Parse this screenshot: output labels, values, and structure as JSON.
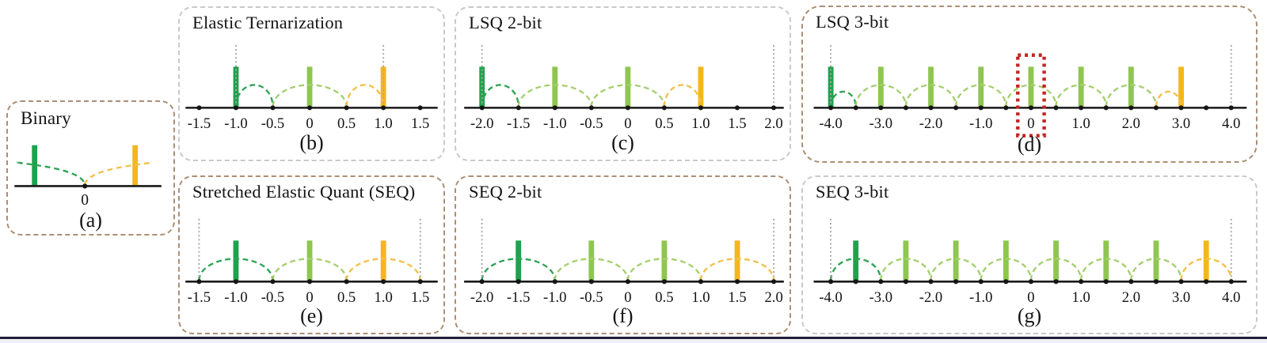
{
  "figure": {
    "colors": {
      "bar_dark_green": "#1fa24d",
      "bar_light_green": "#8ec64f",
      "bar_yellow": "#f3b71c",
      "arc_dark_green": "#2ea355",
      "arc_light_green": "#a5cf6e",
      "arc_yellow": "#f2c04a",
      "axis": "#1a1a1a",
      "tick_dot": "#161616",
      "label_text": "#121212",
      "dotted_line": "#a9a9a9",
      "border_gray": "#c9c9c9",
      "border_tan": "#ab8f73",
      "highlight_red": "#c42420",
      "bottom_rule": "#20203a"
    },
    "panels": [
      {
        "id": "a",
        "title": "Binary",
        "caption": "(a)",
        "border": "tan",
        "type": "binary",
        "zero_label": "0",
        "bars": [
          {
            "pos": -1,
            "color": "darkGreen"
          },
          {
            "pos": 1,
            "color": "yellow"
          }
        ],
        "curves": [
          {
            "side": "left",
            "color": "darkGreen"
          },
          {
            "side": "right",
            "color": "yellow"
          }
        ]
      },
      {
        "id": "b",
        "title": "Elastic Ternarization",
        "caption": "(b)",
        "border": "gray",
        "range": [
          -1.5,
          1.5
        ],
        "tick_labels": [
          {
            "v": -1.5,
            "t": "-1.5"
          },
          {
            "v": -1,
            "t": "-1.0"
          },
          {
            "v": -0.5,
            "t": "-0.5"
          },
          {
            "v": 0,
            "t": "0"
          },
          {
            "v": 0.5,
            "t": "0.5"
          },
          {
            "v": 1,
            "t": "1.0"
          },
          {
            "v": 1.5,
            "t": "1.5"
          }
        ],
        "bars": [
          {
            "pos": -1,
            "color": "darkGreen"
          },
          {
            "pos": 0,
            "color": "lightGreen"
          },
          {
            "pos": 1,
            "color": "yellow"
          }
        ],
        "dotted_lines": [
          -1,
          1
        ],
        "arcs": [
          {
            "from": -1,
            "to": -0.5,
            "color": "darkGreen"
          },
          {
            "from": -0.5,
            "to": 0.5,
            "color": "lightGreen"
          },
          {
            "from": 0.5,
            "to": 1,
            "color": "yellow"
          }
        ]
      },
      {
        "id": "c",
        "title": "LSQ 2-bit",
        "caption": "(c)",
        "border": "gray",
        "range": [
          -2,
          2
        ],
        "tick_labels": [
          {
            "v": -2,
            "t": "-2.0"
          },
          {
            "v": -1.5,
            "t": "-1.5"
          },
          {
            "v": -1,
            "t": "-1.0"
          },
          {
            "v": -0.5,
            "t": "-0.5"
          },
          {
            "v": 0,
            "t": "0"
          },
          {
            "v": 0.5,
            "t": "0.5"
          },
          {
            "v": 1,
            "t": "1.0"
          },
          {
            "v": 1.5,
            "t": "1.5"
          },
          {
            "v": 2,
            "t": "2.0"
          }
        ],
        "bars": [
          {
            "pos": -2,
            "color": "darkGreen"
          },
          {
            "pos": -1,
            "color": "lightGreen"
          },
          {
            "pos": 0,
            "color": "lightGreen"
          },
          {
            "pos": 1,
            "color": "yellow"
          }
        ],
        "dotted_lines": [
          -2,
          2
        ],
        "arcs": [
          {
            "from": -2,
            "to": -1.5,
            "color": "darkGreen"
          },
          {
            "from": -1.5,
            "to": -0.5,
            "color": "lightGreen"
          },
          {
            "from": -0.5,
            "to": 0.5,
            "color": "lightGreen"
          },
          {
            "from": 0.5,
            "to": 1,
            "color": "yellow"
          }
        ]
      },
      {
        "id": "d",
        "title": "LSQ 3-bit",
        "caption": "(d)",
        "border": "tan",
        "range": [
          -4,
          4
        ],
        "highlight_value": 0,
        "tick_labels": [
          {
            "v": -4,
            "t": "-4.0"
          },
          {
            "v": -3,
            "t": "-3.0"
          },
          {
            "v": -2,
            "t": "-2.0"
          },
          {
            "v": -1,
            "t": "-1.0"
          },
          {
            "v": 0,
            "t": "0"
          },
          {
            "v": 1,
            "t": "1.0"
          },
          {
            "v": 2,
            "t": "2.0"
          },
          {
            "v": 3,
            "t": "3.0"
          },
          {
            "v": 4,
            "t": "4.0"
          }
        ],
        "bars": [
          {
            "pos": -4,
            "color": "darkGreen"
          },
          {
            "pos": -3,
            "color": "lightGreen"
          },
          {
            "pos": -2,
            "color": "lightGreen"
          },
          {
            "pos": -1,
            "color": "lightGreen"
          },
          {
            "pos": 0,
            "color": "lightGreen"
          },
          {
            "pos": 1,
            "color": "lightGreen"
          },
          {
            "pos": 2,
            "color": "lightGreen"
          },
          {
            "pos": 3,
            "color": "yellow"
          }
        ],
        "dotted_lines": [
          -4,
          4
        ],
        "arcs": [
          {
            "from": -4,
            "to": -3.5,
            "color": "darkGreen"
          },
          {
            "from": -3.5,
            "to": -2.5,
            "color": "lightGreen"
          },
          {
            "from": -2.5,
            "to": -1.5,
            "color": "lightGreen"
          },
          {
            "from": -1.5,
            "to": -0.5,
            "color": "lightGreen"
          },
          {
            "from": -0.5,
            "to": 0.5,
            "color": "lightGreen"
          },
          {
            "from": 0.5,
            "to": 1.5,
            "color": "lightGreen"
          },
          {
            "from": 1.5,
            "to": 2.5,
            "color": "lightGreen"
          },
          {
            "from": 2.5,
            "to": 3,
            "color": "yellow"
          }
        ]
      },
      {
        "id": "e",
        "title": "Stretched Elastic Quant (SEQ)",
        "caption": "(e)",
        "border": "tan",
        "range": [
          -1.5,
          1.5
        ],
        "tick_labels": [
          {
            "v": -1.5,
            "t": "-1.5"
          },
          {
            "v": -1,
            "t": "-1.0"
          },
          {
            "v": -0.5,
            "t": "-0.5"
          },
          {
            "v": 0,
            "t": "0"
          },
          {
            "v": 0.5,
            "t": "0.5"
          },
          {
            "v": 1,
            "t": "1.0"
          },
          {
            "v": 1.5,
            "t": "1.5"
          }
        ],
        "bars": [
          {
            "pos": -1,
            "color": "darkGreen"
          },
          {
            "pos": 0,
            "color": "lightGreen"
          },
          {
            "pos": 1,
            "color": "yellow"
          }
        ],
        "dotted_lines": [
          -1.5,
          1.5
        ],
        "arcs": [
          {
            "from": -1.5,
            "to": -0.5,
            "color": "darkGreen"
          },
          {
            "from": -0.5,
            "to": 0.5,
            "color": "lightGreen"
          },
          {
            "from": 0.5,
            "to": 1.5,
            "color": "yellow"
          }
        ]
      },
      {
        "id": "f",
        "title": "SEQ 2-bit",
        "caption": "(f)",
        "border": "tan",
        "range": [
          -2,
          2
        ],
        "tick_labels": [
          {
            "v": -2,
            "t": "-2.0"
          },
          {
            "v": -1.5,
            "t": "-1.5"
          },
          {
            "v": -1,
            "t": "-1.0"
          },
          {
            "v": -0.5,
            "t": "-0.5"
          },
          {
            "v": 0,
            "t": "0"
          },
          {
            "v": 0.5,
            "t": "0.5"
          },
          {
            "v": 1,
            "t": "1.0"
          },
          {
            "v": 1.5,
            "t": "1.5"
          },
          {
            "v": 2,
            "t": "2.0"
          }
        ],
        "bars": [
          {
            "pos": -1.5,
            "color": "darkGreen"
          },
          {
            "pos": -0.5,
            "color": "lightGreen"
          },
          {
            "pos": 0.5,
            "color": "lightGreen"
          },
          {
            "pos": 1.5,
            "color": "yellow"
          }
        ],
        "dotted_lines": [
          -2,
          2
        ],
        "arcs": [
          {
            "from": -2,
            "to": -1,
            "color": "darkGreen"
          },
          {
            "from": -1,
            "to": 0,
            "color": "lightGreen"
          },
          {
            "from": 0,
            "to": 1,
            "color": "lightGreen"
          },
          {
            "from": 1,
            "to": 2,
            "color": "yellow"
          }
        ]
      },
      {
        "id": "g",
        "title": "SEQ 3-bit",
        "caption": "(g)",
        "border": "gray",
        "range": [
          -4,
          4
        ],
        "tick_labels": [
          {
            "v": -4,
            "t": "-4.0"
          },
          {
            "v": -3,
            "t": "-3.0"
          },
          {
            "v": -2,
            "t": "-2.0"
          },
          {
            "v": -1,
            "t": "-1.0"
          },
          {
            "v": 0,
            "t": "0"
          },
          {
            "v": 1,
            "t": "1.0"
          },
          {
            "v": 2,
            "t": "2.0"
          },
          {
            "v": 3,
            "t": "3.0"
          },
          {
            "v": 4,
            "t": "4.0"
          }
        ],
        "bars": [
          {
            "pos": -3.5,
            "color": "darkGreen"
          },
          {
            "pos": -2.5,
            "color": "lightGreen"
          },
          {
            "pos": -1.5,
            "color": "lightGreen"
          },
          {
            "pos": -0.5,
            "color": "lightGreen"
          },
          {
            "pos": 0.5,
            "color": "lightGreen"
          },
          {
            "pos": 1.5,
            "color": "lightGreen"
          },
          {
            "pos": 2.5,
            "color": "lightGreen"
          },
          {
            "pos": 3.5,
            "color": "yellow"
          }
        ],
        "dotted_lines": [
          -4,
          4
        ],
        "arcs": [
          {
            "from": -4,
            "to": -3,
            "color": "darkGreen"
          },
          {
            "from": -3,
            "to": -2,
            "color": "lightGreen"
          },
          {
            "from": -2,
            "to": -1,
            "color": "lightGreen"
          },
          {
            "from": -1,
            "to": 0,
            "color": "lightGreen"
          },
          {
            "from": 0,
            "to": 1,
            "color": "lightGreen"
          },
          {
            "from": 1,
            "to": 2,
            "color": "lightGreen"
          },
          {
            "from": 2,
            "to": 3,
            "color": "lightGreen"
          },
          {
            "from": 3,
            "to": 4,
            "color": "yellow"
          }
        ]
      }
    ]
  }
}
